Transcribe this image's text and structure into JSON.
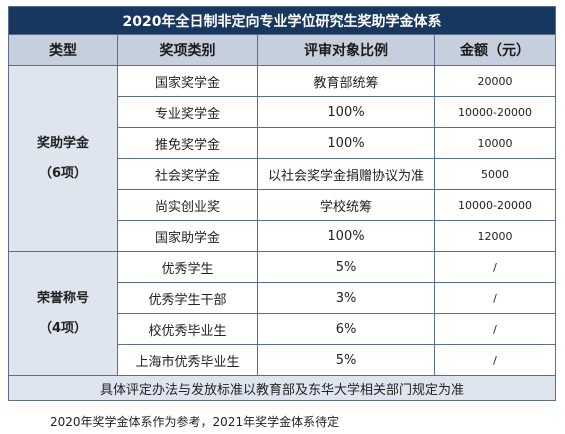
{
  "title": "2020年全日制非定向专业学位研究生奖助学金体系",
  "headers": [
    "类型",
    "奖项类别",
    "评审对象比例",
    "金额（元）"
  ],
  "groups": [
    {
      "category": "奖助学金",
      "count": "（6项）",
      "rows": [
        {
          "award": "国家奖学金",
          "ratio": "教育部统筹",
          "amount": "20000"
        },
        {
          "award": "专业奖学金",
          "ratio": "100%",
          "amount": "10000-20000"
        },
        {
          "award": "推免奖学金",
          "ratio": "100%",
          "amount": "10000"
        },
        {
          "award": "社会奖学金",
          "ratio": "以社会奖学金捐赠协议为准",
          "amount": "5000"
        },
        {
          "award": "尚实创业奖",
          "ratio": "学校统筹",
          "amount": "10000-20000"
        },
        {
          "award": "国家助学金",
          "ratio": "100%",
          "amount": "12000"
        }
      ]
    },
    {
      "category": "荣誉称号",
      "count": "（4项）",
      "rows": [
        {
          "award": "优秀学生",
          "ratio": "5%",
          "amount": "/"
        },
        {
          "award": "优秀学生干部",
          "ratio": "3%",
          "amount": "/"
        },
        {
          "award": "校优秀毕业生",
          "ratio": "6%",
          "amount": "/"
        },
        {
          "award": "上海市优秀毕业生",
          "ratio": "5%",
          "amount": "/"
        }
      ]
    }
  ],
  "footer": "具体评定办法与发放标准以教育部及东华大学相关部门规定为准",
  "note": "2020年奖学金体系作为参考，2021年奖学金体系待定"
}
